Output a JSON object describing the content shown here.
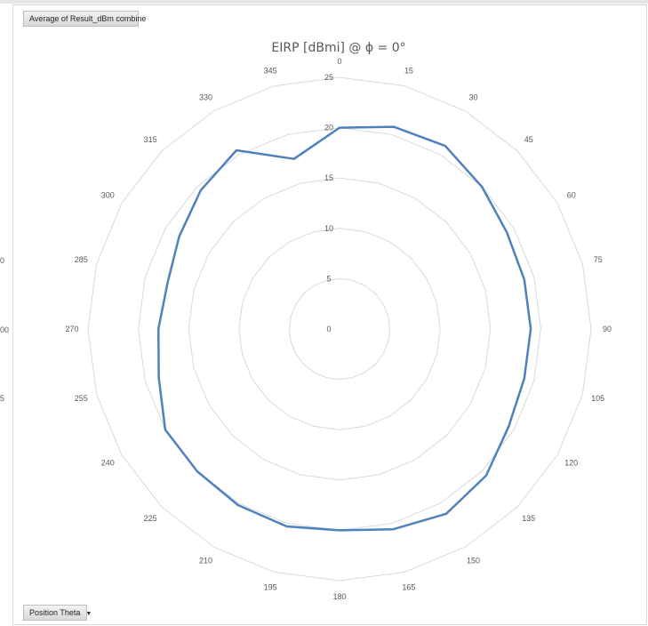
{
  "field_buttons": {
    "values_field": "Average of Result_dBm combine",
    "axis_field": "Position Theta",
    "axis_field_icon": "dropdown-arrow-icon"
  },
  "left_edge_labels": [
    "0",
    "00",
    "5"
  ],
  "chart_data": {
    "type": "radar",
    "title": "EIRP [dBmi] @ ϕ = 0°",
    "categories": [
      "0",
      "15",
      "30",
      "45",
      "60",
      "75",
      "90",
      "105",
      "120",
      "135",
      "150",
      "165",
      "180",
      "195",
      "210",
      "225",
      "240",
      "255",
      "270",
      "285",
      "300",
      "315",
      "330",
      "345"
    ],
    "radial_ticks": [
      "0",
      "5",
      "10",
      "15",
      "20",
      "25"
    ],
    "rlim": [
      0,
      25
    ],
    "grid": true,
    "series": [
      {
        "values": [
          20.0,
          20.8,
          21.0,
          20.0,
          19.2,
          19.0,
          19.0,
          19.0,
          19.4,
          20.6,
          21.2,
          20.6,
          20.0,
          20.3,
          20.2,
          20.0,
          20.0,
          18.6,
          18.0,
          17.7,
          18.4,
          19.5,
          20.5,
          17.5
        ],
        "color": "#4f81bd"
      }
    ]
  }
}
